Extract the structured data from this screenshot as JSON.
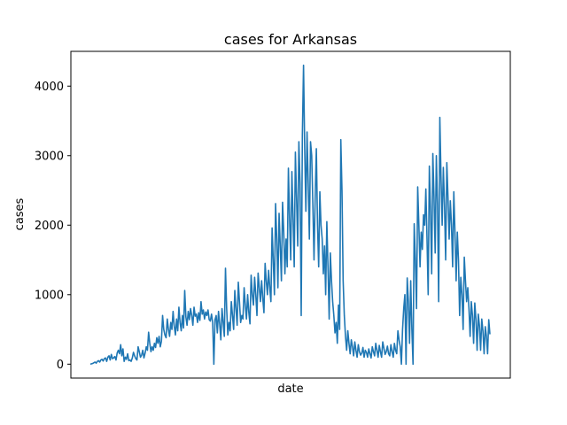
{
  "chart_data": {
    "type": "line",
    "title": "cases for Arkansas",
    "xlabel": "date",
    "ylabel": "cases",
    "ylim": [
      -200,
      4500
    ],
    "yticks": [
      0,
      1000,
      2000,
      3000,
      4000
    ],
    "grid": false,
    "color": "#1f77b4",
    "series": [
      {
        "values": [
          0,
          5,
          10,
          20,
          30,
          15,
          40,
          50,
          30,
          60,
          70,
          45,
          80,
          90,
          40,
          100,
          120,
          60,
          140,
          80,
          90,
          110,
          60,
          160,
          200,
          150,
          280,
          120,
          220,
          40,
          100,
          70,
          150,
          50,
          60,
          40,
          90,
          170,
          120,
          80,
          60,
          250,
          180,
          100,
          130,
          200,
          90,
          160,
          250,
          200,
          460,
          300,
          180,
          250,
          200,
          300,
          240,
          380,
          300,
          400,
          250,
          330,
          700,
          500,
          420,
          380,
          650,
          500,
          400,
          600,
          500,
          760,
          550,
          420,
          650,
          480,
          820,
          600,
          480,
          700,
          520,
          1060,
          680,
          560,
          760,
          640,
          800,
          700,
          560,
          820,
          690,
          720,
          600,
          740,
          630,
          900,
          720,
          780,
          650,
          750,
          700,
          780,
          640,
          620,
          720,
          600,
          0,
          640,
          700,
          450,
          760,
          580,
          350,
          800,
          600,
          400,
          1380,
          800,
          420,
          600,
          480,
          900,
          700,
          500,
          1060,
          800,
          560,
          1180,
          900,
          600,
          700,
          650,
          1100,
          850,
          650,
          1000,
          750,
          580,
          1280,
          1000,
          850,
          1250,
          1000,
          700,
          1310,
          1100,
          900,
          1200,
          950,
          740,
          1450,
          1200,
          1000,
          1350,
          1100,
          900,
          1960,
          1500,
          1000,
          2310,
          1800,
          1100,
          2170,
          1700,
          1200,
          2330,
          1900,
          1300,
          1800,
          1400,
          2820,
          2100,
          1500,
          2770,
          2100,
          1400,
          3050,
          2400,
          1700,
          3200,
          2600,
          700,
          3300,
          4300,
          3100,
          2200,
          3340,
          2600,
          1800,
          3200,
          3000,
          2300,
          1500,
          2400,
          3100,
          2000,
          1400,
          2480,
          2000,
          1800,
          1300,
          1700,
          1000,
          2050,
          1400,
          650,
          1600,
          1200,
          900,
          700,
          450,
          600,
          300,
          850,
          500,
          3230,
          2500,
          1200,
          700,
          400,
          200,
          480,
          300,
          150,
          350,
          250,
          120,
          320,
          200,
          100,
          280,
          180,
          130,
          160,
          240,
          100,
          200,
          170,
          100,
          220,
          150,
          90,
          250,
          180,
          120,
          300,
          200,
          100,
          270,
          180,
          100,
          320,
          230,
          140,
          180,
          260,
          150,
          120,
          280,
          180,
          100,
          300,
          200,
          150,
          480,
          350,
          250,
          0,
          500,
          800,
          1000,
          0,
          1240,
          900,
          300,
          1200,
          500,
          0,
          2020,
          1500,
          800,
          2550,
          2000,
          1400,
          1900,
          1650,
          2150,
          2000,
          2520,
          1800,
          1000,
          2850,
          2200,
          1300,
          3030,
          2400,
          1600,
          3000,
          2300,
          900,
          3550,
          2700,
          2000,
          2830,
          2300,
          1500,
          2900,
          2400,
          1800,
          2350,
          2000,
          1400,
          2480,
          1900,
          1200,
          1900,
          1500,
          700,
          1250,
          1000,
          500,
          1540,
          1200,
          900,
          1100,
          800,
          400,
          900,
          700,
          300,
          880,
          650,
          200,
          720,
          550,
          200,
          650,
          480,
          150,
          540,
          400,
          150,
          640,
          430
        ]
      }
    ]
  }
}
